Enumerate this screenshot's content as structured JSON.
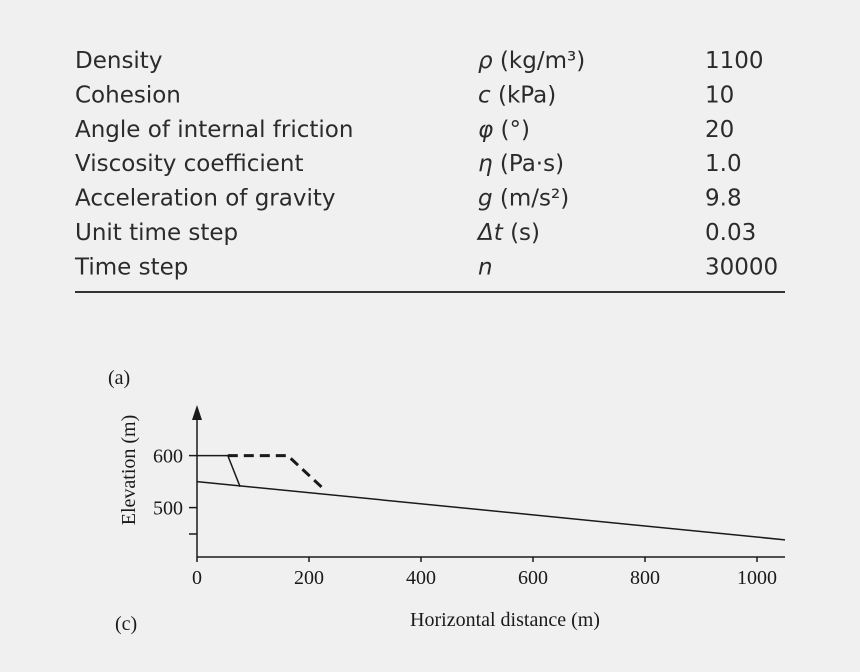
{
  "table": {
    "rows": [
      {
        "parameter": "Density",
        "symbol": "ρ",
        "unit": "(kg/m³)",
        "value": "1100"
      },
      {
        "parameter": "Cohesion",
        "symbol": "c",
        "unit": "(kPa)",
        "value": "10"
      },
      {
        "parameter": "Angle of internal friction",
        "symbol": "φ",
        "unit": "(°)",
        "value": "20"
      },
      {
        "parameter": "Viscosity coefficient",
        "symbol": "η",
        "unit": "(Pa·s)",
        "value": "1.0"
      },
      {
        "parameter": "Acceleration of gravity",
        "symbol": "g",
        "unit": "(m/s²)",
        "value": "9.8"
      },
      {
        "parameter": "Unit time step",
        "symbol": "Δt",
        "unit": "(s)",
        "value": "0.03"
      },
      {
        "parameter": "Time step",
        "symbol": "n",
        "unit": "",
        "value": "30000"
      }
    ]
  },
  "chart_data": {
    "type": "line",
    "panel_label": "(a)",
    "caption_label": "(c)",
    "xlabel": "Horizontal distance (m)",
    "ylabel": "Elevation (m)",
    "xlim": [
      0,
      1050
    ],
    "ylim": [
      405,
      690
    ],
    "xticks": [
      0,
      200,
      400,
      600,
      800,
      1000
    ],
    "yticks": [
      500,
      600
    ],
    "series": [
      {
        "color": "#1a1a1a",
        "dash": false,
        "x": [
          0,
          1050
        ],
        "values": [
          550,
          438
        ]
      },
      {
        "color": "#1a1a1a",
        "dash": false,
        "x": [
          0,
          55,
          77
        ],
        "values": [
          600,
          600,
          540
        ]
      },
      {
        "color": "#1a1a1a",
        "dash": true,
        "x": [
          55,
          162,
          229
        ],
        "values": [
          600,
          600,
          533
        ]
      }
    ]
  }
}
